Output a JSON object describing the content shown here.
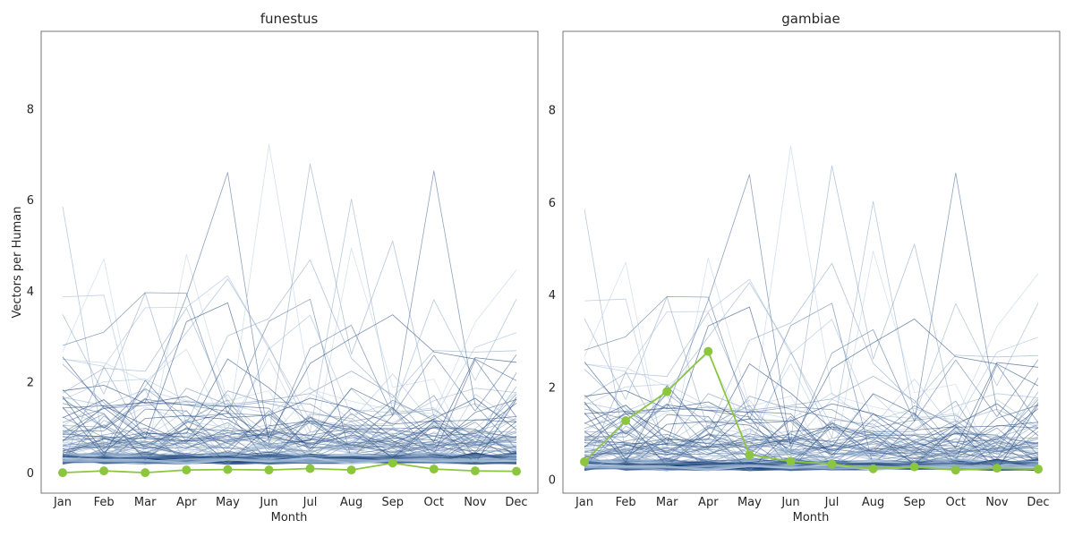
{
  "figure": {
    "ylabel": "Vectors per Human",
    "xlabel": "Month"
  },
  "chart_data": [
    {
      "type": "line",
      "title": "funestus",
      "xlabel": "Month",
      "ylabel": "Vectors per Human",
      "categories": [
        "Jan",
        "Feb",
        "Mar",
        "Apr",
        "May",
        "Jun",
        "Jul",
        "Aug",
        "Sep",
        "Oct",
        "Nov",
        "Dec"
      ],
      "ylim": [
        -0.45,
        9.7
      ],
      "yticks": [
        0,
        2,
        4,
        6,
        8
      ],
      "grid": false,
      "background_series_count": 120,
      "background_color_range": [
        "#c6dbef",
        "#08306b"
      ],
      "highlight_series": {
        "color": "#8cc63f",
        "values": [
          0.0,
          0.04,
          0.0,
          0.06,
          0.07,
          0.06,
          0.09,
          0.06,
          0.21,
          0.08,
          0.04,
          0.03
        ]
      }
    },
    {
      "type": "line",
      "title": "gambiae",
      "xlabel": "Month",
      "ylabel": "",
      "categories": [
        "Jan",
        "Feb",
        "Mar",
        "Apr",
        "May",
        "Jun",
        "Jul",
        "Aug",
        "Sep",
        "Oct",
        "Nov",
        "Dec"
      ],
      "ylim": [
        -0.3,
        9.7
      ],
      "yticks": [
        0,
        2,
        4,
        6,
        8
      ],
      "grid": false,
      "background_series_count": 120,
      "background_color_range": [
        "#c6dbef",
        "#08306b"
      ],
      "highlight_series": {
        "color": "#8cc63f",
        "values": [
          0.38,
          1.27,
          1.9,
          2.77,
          0.53,
          0.39,
          0.33,
          0.23,
          0.27,
          0.2,
          0.24,
          0.22
        ]
      }
    }
  ]
}
